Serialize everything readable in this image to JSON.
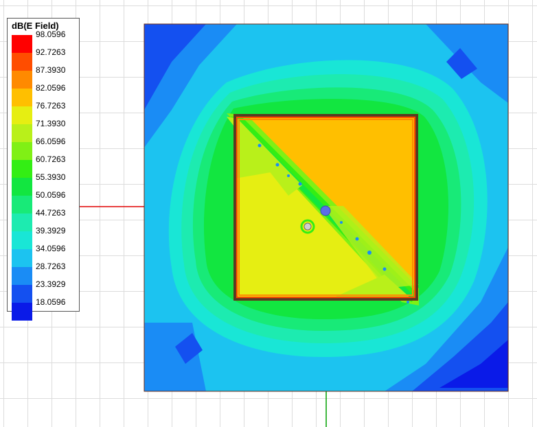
{
  "legend": {
    "title": "dB(E Field)",
    "levels": [
      "98.0596",
      "92.7263",
      "87.3930",
      "82.0596",
      "76.7263",
      "71.3930",
      "66.0596",
      "60.7263",
      "55.3930",
      "50.0596",
      "44.7263",
      "39.3929",
      "34.0596",
      "28.7263",
      "23.3929",
      "18.0596"
    ],
    "colors": [
      "#ff0000",
      "#ff4d00",
      "#ff8a00",
      "#ffbf00",
      "#e6ee12",
      "#b9f01a",
      "#80f015",
      "#33ee14",
      "#12e640",
      "#18ea78",
      "#1debb0",
      "#19e6d6",
      "#1cc3f0",
      "#1a8cf5",
      "#1450f0",
      "#0a1ae8"
    ]
  },
  "plot_colors": {
    "boundary": "#6a2a14",
    "patch_outline": "#3a3a3a",
    "x_axis": "#e00000",
    "y_axis": "#00a000",
    "probe": "#5b6ee8",
    "feed": "#cfcfcf"
  }
}
